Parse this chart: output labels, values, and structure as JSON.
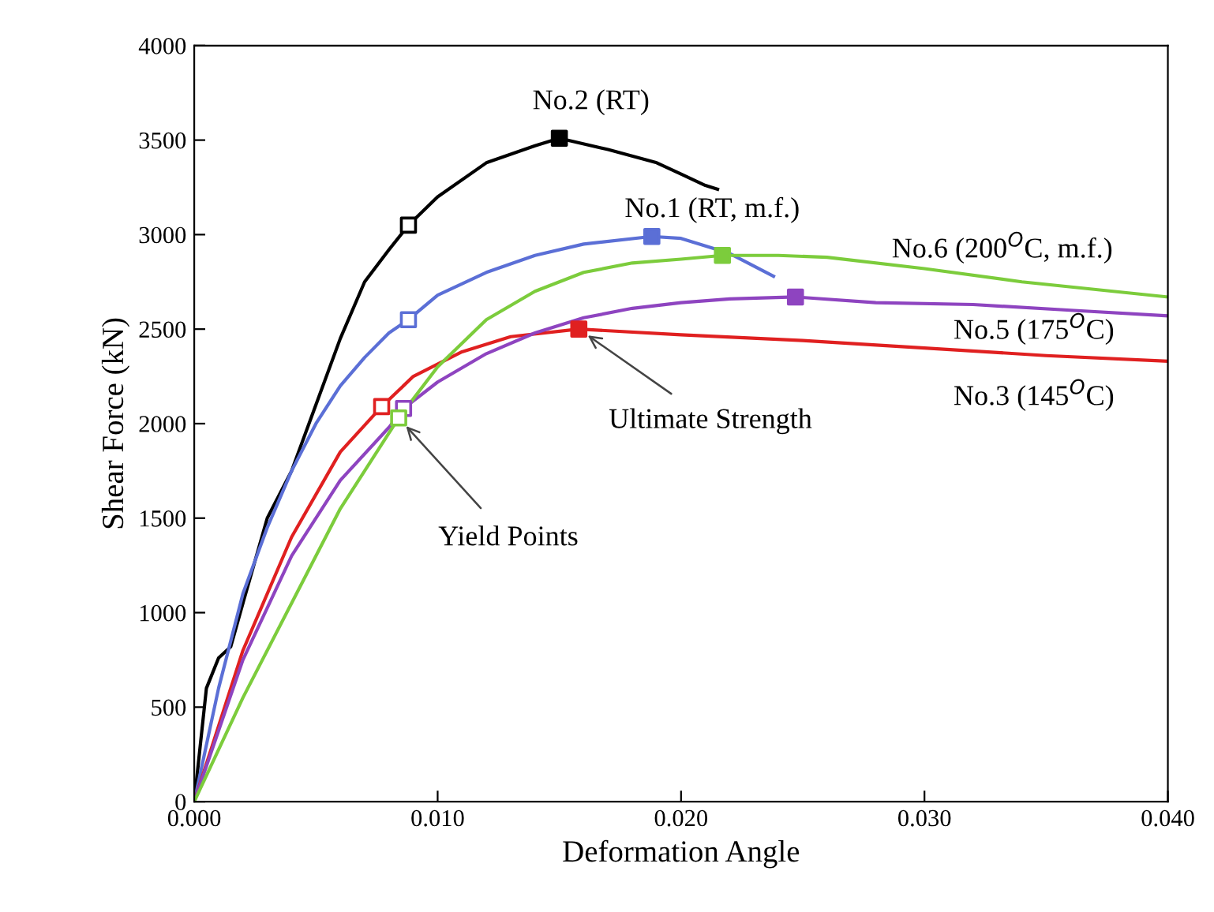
{
  "chart_data": {
    "type": "line",
    "xlabel": "Deformation Angle",
    "ylabel": "Shear Force (kN)",
    "xlim": [
      0,
      0.04
    ],
    "xticks": [
      {
        "value": 0,
        "label": "0.000"
      },
      {
        "value": 0.01,
        "label": "0.010"
      },
      {
        "value": 0.02,
        "label": "0.020"
      },
      {
        "value": 0.03,
        "label": "0.030"
      },
      {
        "value": 0.04,
        "label": "0.040"
      }
    ],
    "ylim": [
      0,
      4000
    ],
    "yticks": [
      0,
      500,
      1000,
      1500,
      2000,
      2500,
      3000,
      3500,
      4000
    ],
    "grid": false,
    "legend": false,
    "marker": "none",
    "line_style": "solid",
    "series": [
      {
        "name": "No.2 (RT)",
        "color": "#000000",
        "x": [
          0,
          0.0005,
          0.001,
          0.0015,
          0.002,
          0.003,
          0.004,
          0.005,
          0.006,
          0.007,
          0.008,
          0.0088,
          0.01,
          0.012,
          0.014,
          0.015,
          0.017,
          0.019,
          0.02,
          0.021,
          0.0215
        ],
        "values": [
          0,
          600,
          760,
          820,
          1050,
          1500,
          1750,
          2100,
          2450,
          2750,
          2920,
          3050,
          3200,
          3380,
          3470,
          3510,
          3450,
          3380,
          3320,
          3260,
          3240
        ]
      },
      {
        "name": "No.1 (RT, m.f.)",
        "color": "#5b6fd6",
        "x": [
          0,
          0.001,
          0.002,
          0.003,
          0.004,
          0.005,
          0.006,
          0.007,
          0.008,
          0.0088,
          0.01,
          0.012,
          0.014,
          0.016,
          0.0188,
          0.02,
          0.022,
          0.0238
        ],
        "values": [
          0,
          600,
          1100,
          1450,
          1750,
          2000,
          2200,
          2350,
          2480,
          2550,
          2680,
          2800,
          2890,
          2950,
          2990,
          2980,
          2900,
          2780
        ]
      },
      {
        "name": "No.3 (145$^{O}$C)",
        "color": "#e02020",
        "x": [
          0,
          0.002,
          0.004,
          0.006,
          0.0077,
          0.009,
          0.011,
          0.013,
          0.0158,
          0.02,
          0.025,
          0.03,
          0.035,
          0.04
        ],
        "values": [
          0,
          800,
          1400,
          1850,
          2090,
          2250,
          2380,
          2460,
          2500,
          2470,
          2440,
          2400,
          2360,
          2330
        ]
      },
      {
        "name": "No.5 (175$^{O}$C)",
        "color": "#8e44c0",
        "x": [
          0,
          0.002,
          0.004,
          0.006,
          0.008,
          0.0086,
          0.01,
          0.012,
          0.014,
          0.016,
          0.018,
          0.02,
          0.022,
          0.0247,
          0.028,
          0.032,
          0.036,
          0.04
        ],
        "values": [
          0,
          750,
          1300,
          1700,
          1980,
          2080,
          2220,
          2370,
          2480,
          2560,
          2610,
          2640,
          2660,
          2670,
          2640,
          2630,
          2600,
          2570
        ]
      },
      {
        "name": "No.6 (200$^{O}$C, m.f.)",
        "color": "#7ccc3c",
        "x": [
          0,
          0.002,
          0.004,
          0.006,
          0.008,
          0.0084,
          0.01,
          0.012,
          0.014,
          0.016,
          0.018,
          0.02,
          0.0217,
          0.024,
          0.026,
          0.03,
          0.034,
          0.04
        ],
        "values": [
          0,
          550,
          1050,
          1550,
          1950,
          2030,
          2300,
          2550,
          2700,
          2800,
          2850,
          2870,
          2890,
          2890,
          2880,
          2820,
          2750,
          2670
        ]
      },
      {
        "name": "Yield Points",
        "type": "scatter",
        "marker": "square",
        "x": [
          0.0088,
          0.0088,
          0.0077,
          0.0086,
          0.0084
        ],
        "values": [
          3050,
          2550,
          2090,
          2080,
          2030
        ],
        "colors": [
          "#000000",
          "#5b6fd6",
          "#e02020",
          "#8e44c0",
          "#7ccc3c"
        ]
      },
      {
        "name": "Ultimate Strength",
        "type": "scatter",
        "marker": "square",
        "x": [
          0.015,
          0.0188,
          0.0158,
          0.0247,
          0.0217
        ],
        "values": [
          3510,
          2990,
          2500,
          2670,
          2890
        ],
        "colors": [
          "#000000",
          "#5b6fd6",
          "#e02020",
          "#8e44c0",
          "#7ccc3c"
        ]
      }
    ]
  }
}
